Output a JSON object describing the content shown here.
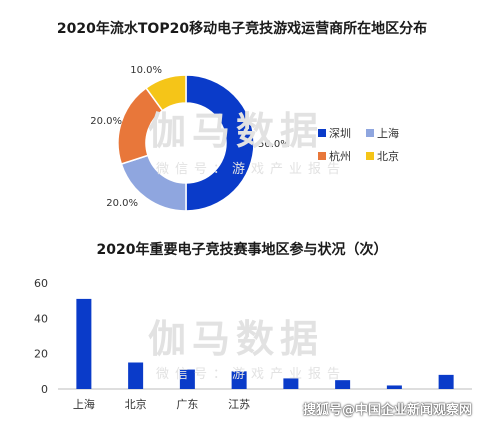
{
  "watermark": {
    "big": "伽马数据",
    "small": "微信号：游戏产业报告"
  },
  "footer": "搜狐号@中国企业新闻观察网",
  "colors": {
    "shenzhen": "#0a3bc9",
    "shanghai": "#8fa6df",
    "hangzhou": "#e8773a",
    "beijing": "#f5c518",
    "bar": "#0a3bc9"
  },
  "chart_data": [
    {
      "type": "pie",
      "donut": true,
      "title": "2020年流水TOP20移动电子竞技游戏运营商所在地区分布",
      "categories": [
        "深圳",
        "上海",
        "杭州",
        "北京"
      ],
      "values": [
        50.0,
        20.0,
        20.0,
        10.0
      ],
      "labels": [
        "50.0%",
        "20.0%",
        "20.0%",
        "10.0%"
      ],
      "legend": "right"
    },
    {
      "type": "bar",
      "title": "2020年重要电子竞技赛事地区参与状况（次）",
      "categories": [
        "上海",
        "北京",
        "广东",
        "江苏",
        "",
        "",
        "",
        ""
      ],
      "values": [
        51,
        15,
        11,
        10,
        6,
        5,
        2,
        8
      ],
      "ylim": [
        0,
        60
      ],
      "yticks": [
        0,
        20,
        40,
        60
      ],
      "grid": false
    }
  ]
}
